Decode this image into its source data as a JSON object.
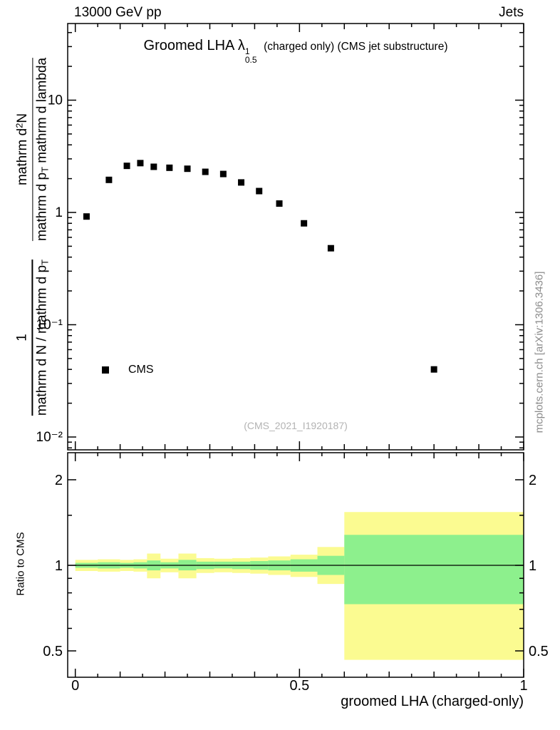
{
  "header": {
    "left": "13000 GeV pp",
    "right": "Jets"
  },
  "title": {
    "prefix": "Groomed LHA",
    "symbol": "λ",
    "symbol_sup": "1",
    "symbol_sub": "0.5",
    "suffix": "(charged only) (CMS jet substructure)"
  },
  "y_axis_label": {
    "frac1_num": "1",
    "frac1_den_main": "mathrm d N / mathrm d p",
    "frac1_den_sub": "T",
    "frac2_num_pre": "mathrm d",
    "frac2_num_sup": "2",
    "frac2_num_post": "N",
    "frac2_den_pre": "mathrm d p",
    "frac2_den_sub": "T",
    "frac2_den_post": " mathrm d lambda"
  },
  "legend": {
    "label": "CMS"
  },
  "watermark": "(CMS_2021_I1920187)",
  "side_note": "mcplots.cern.ch [arXiv:1306.3436]",
  "axes": {
    "x_title": "groomed LHA (charged-only)",
    "ratio_y_title": "Ratio to CMS",
    "main_y_ticks": [
      {
        "value": 10,
        "label": "10"
      },
      {
        "value": 1,
        "label": "1"
      },
      {
        "value": 0.1,
        "label": "10⁻¹"
      },
      {
        "value": 0.01,
        "label": "10⁻²"
      }
    ],
    "ratio_y_ticks": [
      {
        "value": 2,
        "label": "2"
      },
      {
        "value": 1,
        "label": "1"
      },
      {
        "value": 0.5,
        "label": "0.5"
      }
    ],
    "x_ticks": [
      {
        "value": 0,
        "label": "0"
      },
      {
        "value": 0.5,
        "label": "0.5"
      },
      {
        "value": 1,
        "label": "1"
      }
    ]
  },
  "colors": {
    "yellow_band": "#fbfb91",
    "green_band": "#8df08d",
    "marker": "#000000"
  },
  "chart_data": [
    {
      "type": "scatter",
      "panel": "main",
      "title": "Groomed LHA λ^1_0.5 (charged only) (CMS jet substructure)",
      "xlabel": "groomed LHA (charged-only)",
      "ylabel": "1 / (dN/dp_T) · d²N / (dp_T dλ)",
      "yscale": "log",
      "xlim": [
        -0.017,
        1.0
      ],
      "ylim": [
        0.0078,
        46.8
      ],
      "legend_position": "lower-left",
      "series": [
        {
          "name": "CMS",
          "marker": "filled-square",
          "color": "#000000",
          "x": [
            0.025,
            0.075,
            0.115,
            0.145,
            0.175,
            0.21,
            0.25,
            0.29,
            0.33,
            0.37,
            0.41,
            0.455,
            0.51,
            0.57,
            0.8
          ],
          "y": [
            0.92,
            1.95,
            2.6,
            2.75,
            2.55,
            2.5,
            2.45,
            2.3,
            2.2,
            1.85,
            1.55,
            1.2,
            0.8,
            0.48,
            0.04
          ]
        }
      ]
    },
    {
      "type": "band",
      "panel": "ratio",
      "ylabel": "Ratio to CMS",
      "yscale": "log",
      "xlim": [
        -0.017,
        1.0
      ],
      "ylim": [
        0.404,
        2.49
      ],
      "reference_line": 1,
      "bins": [
        {
          "x0": 0.0,
          "x1": 0.05,
          "yellow": [
            0.955,
            1.045
          ],
          "green": [
            0.98,
            1.02
          ]
        },
        {
          "x0": 0.05,
          "x1": 0.1,
          "yellow": [
            0.95,
            1.05
          ],
          "green": [
            0.975,
            1.025
          ]
        },
        {
          "x0": 0.1,
          "x1": 0.13,
          "yellow": [
            0.955,
            1.045
          ],
          "green": [
            0.98,
            1.02
          ]
        },
        {
          "x0": 0.13,
          "x1": 0.16,
          "yellow": [
            0.95,
            1.05
          ],
          "green": [
            0.975,
            1.025
          ]
        },
        {
          "x0": 0.16,
          "x1": 0.19,
          "yellow": [
            0.9,
            1.1
          ],
          "green": [
            0.96,
            1.04
          ]
        },
        {
          "x0": 0.19,
          "x1": 0.23,
          "yellow": [
            0.945,
            1.055
          ],
          "green": [
            0.975,
            1.025
          ]
        },
        {
          "x0": 0.23,
          "x1": 0.27,
          "yellow": [
            0.9,
            1.1
          ],
          "green": [
            0.96,
            1.045
          ]
        },
        {
          "x0": 0.27,
          "x1": 0.31,
          "yellow": [
            0.94,
            1.06
          ],
          "green": [
            0.97,
            1.03
          ]
        },
        {
          "x0": 0.31,
          "x1": 0.35,
          "yellow": [
            0.945,
            1.055
          ],
          "green": [
            0.975,
            1.03
          ]
        },
        {
          "x0": 0.35,
          "x1": 0.39,
          "yellow": [
            0.94,
            1.06
          ],
          "green": [
            0.97,
            1.03
          ]
        },
        {
          "x0": 0.39,
          "x1": 0.43,
          "yellow": [
            0.935,
            1.065
          ],
          "green": [
            0.965,
            1.035
          ]
        },
        {
          "x0": 0.43,
          "x1": 0.48,
          "yellow": [
            0.925,
            1.075
          ],
          "green": [
            0.96,
            1.04
          ]
        },
        {
          "x0": 0.48,
          "x1": 0.54,
          "yellow": [
            0.91,
            1.09
          ],
          "green": [
            0.95,
            1.05
          ]
        },
        {
          "x0": 0.54,
          "x1": 0.6,
          "yellow": [
            0.86,
            1.16
          ],
          "green": [
            0.925,
            1.08
          ]
        },
        {
          "x0": 0.6,
          "x1": 1.0,
          "yellow": [
            0.465,
            1.54
          ],
          "green": [
            0.73,
            1.28
          ]
        }
      ]
    }
  ]
}
